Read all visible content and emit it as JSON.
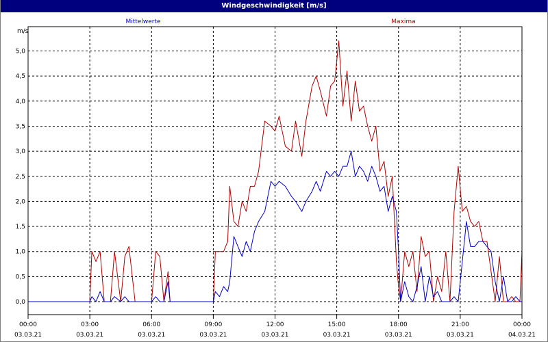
{
  "window": {
    "title": "Windgeschwindigkeit [m/s]"
  },
  "colors": {
    "mean": "#0000cc",
    "max": "#b00000",
    "grid": "#000000",
    "title_bg": "#00007e"
  },
  "chart_data": {
    "type": "line",
    "title": "Windgeschwindigkeit [m/s]",
    "ylabel": "m/s",
    "ylim": [
      0,
      5.5
    ],
    "y_ticks": [
      "0,0",
      "0,5",
      "1,0",
      "1,5",
      "2,0",
      "2,5",
      "3,0",
      "3,5",
      "4,0",
      "4,5",
      "5,0"
    ],
    "xlim": [
      0,
      24
    ],
    "x_ticks": [
      {
        "time": "00:00",
        "date": "03.03.21"
      },
      {
        "time": "03:00",
        "date": "03.03.21"
      },
      {
        "time": "06:00",
        "date": "03.03.21"
      },
      {
        "time": "09:00",
        "date": "03.03.21"
      },
      {
        "time": "12:00",
        "date": "03.03.21"
      },
      {
        "time": "15:00",
        "date": "03.03.21"
      },
      {
        "time": "18:00",
        "date": "03.03.21"
      },
      {
        "time": "21:00",
        "date": "03.03.21"
      },
      {
        "time": "00:00",
        "date": "04.03.21"
      }
    ],
    "grid": true,
    "series": [
      {
        "name": "Mittelwerte",
        "x": [
          0,
          3.0,
          3.1,
          3.3,
          3.5,
          3.7,
          4.0,
          4.2,
          4.5,
          4.7,
          4.9,
          5.2,
          6.0,
          6.2,
          6.4,
          6.6,
          6.8,
          6.9,
          7.1,
          9.0,
          9.1,
          9.3,
          9.5,
          9.7,
          9.8,
          10.0,
          10.2,
          10.4,
          10.6,
          10.8,
          11.0,
          11.2,
          11.5,
          11.8,
          12.0,
          12.2,
          12.5,
          12.8,
          13.0,
          13.3,
          13.5,
          13.8,
          14.0,
          14.2,
          14.5,
          14.7,
          14.9,
          15.1,
          15.3,
          15.5,
          15.7,
          15.9,
          16.1,
          16.3,
          16.5,
          16.7,
          16.9,
          17.1,
          17.3,
          17.5,
          17.7,
          17.9,
          18.0,
          18.1,
          18.3,
          18.5,
          18.7,
          18.9,
          19.1,
          19.3,
          19.5,
          19.7,
          19.9,
          20.1,
          20.3,
          20.5,
          20.7,
          20.9,
          21.1,
          21.3,
          21.5,
          21.7,
          21.9,
          22.1,
          22.3,
          22.5,
          22.7,
          22.9,
          23.1,
          23.3,
          23.5,
          23.7,
          23.9,
          24.0
        ],
        "values": [
          0.0,
          0.0,
          0.1,
          0.0,
          0.2,
          0.0,
          0.0,
          0.1,
          0.0,
          0.1,
          0.0,
          0.0,
          0.0,
          0.1,
          0.0,
          0.0,
          0.4,
          0.0,
          0.0,
          0.0,
          0.2,
          0.1,
          0.3,
          0.2,
          0.4,
          1.3,
          1.1,
          0.9,
          1.2,
          1.0,
          1.4,
          1.6,
          1.8,
          2.4,
          2.3,
          2.4,
          2.3,
          2.1,
          2.0,
          1.8,
          2.0,
          2.2,
          2.4,
          2.2,
          2.6,
          2.5,
          2.6,
          2.5,
          2.7,
          2.7,
          3.0,
          2.5,
          2.7,
          2.6,
          2.4,
          2.7,
          2.5,
          2.2,
          2.3,
          1.8,
          2.1,
          1.8,
          1.0,
          0.0,
          0.4,
          0.1,
          0.0,
          0.3,
          0.7,
          0.0,
          0.5,
          0.1,
          0.2,
          0.0,
          0.0,
          0.0,
          0.1,
          0.0,
          0.8,
          1.6,
          1.1,
          1.1,
          1.2,
          1.2,
          1.1,
          1.0,
          0.4,
          0.0,
          0.5,
          0.0,
          0.0,
          0.1,
          0.0,
          0.0
        ]
      },
      {
        "name": "Maxima",
        "x": [
          0,
          3.0,
          3.1,
          3.3,
          3.5,
          3.7,
          4.0,
          4.2,
          4.5,
          4.7,
          4.9,
          5.2,
          6.0,
          6.2,
          6.4,
          6.6,
          6.8,
          6.9,
          7.1,
          9.0,
          9.1,
          9.3,
          9.5,
          9.7,
          9.8,
          10.0,
          10.2,
          10.4,
          10.6,
          10.8,
          11.0,
          11.2,
          11.5,
          11.8,
          12.0,
          12.2,
          12.5,
          12.8,
          13.0,
          13.3,
          13.5,
          13.8,
          14.0,
          14.2,
          14.5,
          14.7,
          14.9,
          15.1,
          15.3,
          15.5,
          15.7,
          15.9,
          16.1,
          16.3,
          16.5,
          16.7,
          16.9,
          17.1,
          17.3,
          17.5,
          17.7,
          17.9,
          18.0,
          18.1,
          18.3,
          18.5,
          18.7,
          18.9,
          19.1,
          19.3,
          19.5,
          19.7,
          19.9,
          20.1,
          20.3,
          20.5,
          20.7,
          20.9,
          21.1,
          21.3,
          21.5,
          21.7,
          21.9,
          22.1,
          22.3,
          22.5,
          22.7,
          22.9,
          23.1,
          23.3,
          23.5,
          23.7,
          23.9,
          24.0
        ],
        "values": [
          0.0,
          0.0,
          1.0,
          0.8,
          1.0,
          0.0,
          0.0,
          1.0,
          0.0,
          0.9,
          1.1,
          0.0,
          0.0,
          1.0,
          0.9,
          0.0,
          0.6,
          0.0,
          0.0,
          0.0,
          1.0,
          1.0,
          1.0,
          1.2,
          2.3,
          1.6,
          1.5,
          2.0,
          1.8,
          2.3,
          2.3,
          2.6,
          3.6,
          3.5,
          3.4,
          3.7,
          3.1,
          3.0,
          3.6,
          2.9,
          3.6,
          4.3,
          4.5,
          4.2,
          3.7,
          4.3,
          4.4,
          5.2,
          3.9,
          4.6,
          3.6,
          4.4,
          3.8,
          3.9,
          3.5,
          3.2,
          3.5,
          2.6,
          2.8,
          2.1,
          2.5,
          0.8,
          0.3,
          0.0,
          1.0,
          0.7,
          1.0,
          0.2,
          1.3,
          0.9,
          1.0,
          0.0,
          0.5,
          0.2,
          1.0,
          0.0,
          1.8,
          2.7,
          1.8,
          1.9,
          1.6,
          1.5,
          1.6,
          1.2,
          1.2,
          0.6,
          0.0,
          0.9,
          0.0,
          0.0,
          0.1,
          0.0,
          0.0,
          1.0
        ]
      }
    ]
  }
}
